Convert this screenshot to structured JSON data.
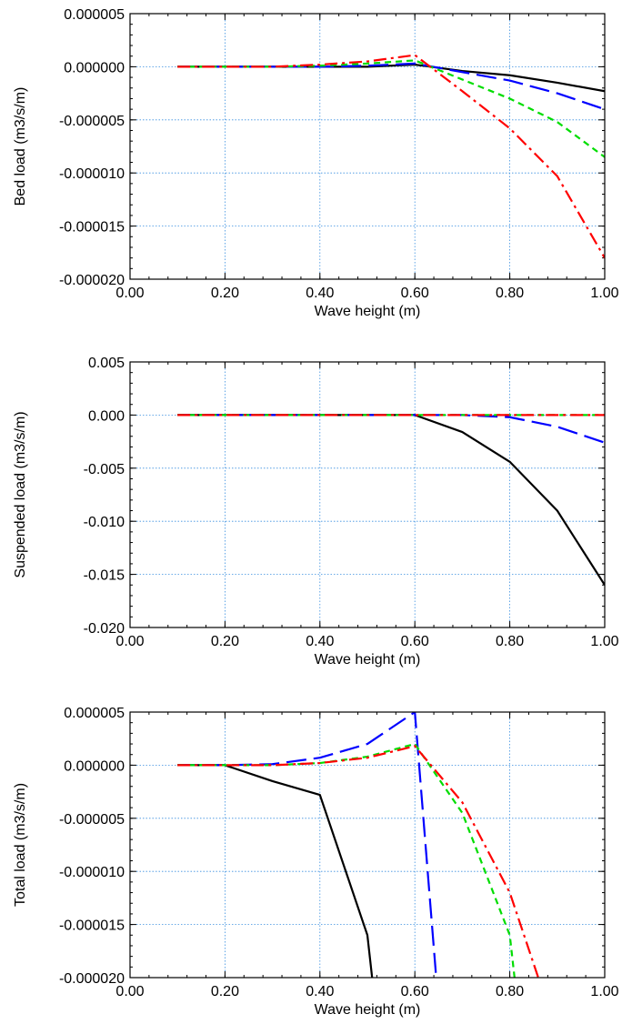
{
  "chart_data": [
    {
      "type": "line",
      "xlabel": "Wave height (m)",
      "ylabel": "Bed load (m3/s/m)",
      "xlim": [
        0.0,
        1.0
      ],
      "ylim": [
        -2e-05,
        5e-06
      ],
      "x_ticks": [
        0.0,
        0.2,
        0.4,
        0.6,
        0.8,
        1.0
      ],
      "x_tick_labels": [
        "0.00",
        "0.20",
        "0.40",
        "0.60",
        "0.80",
        "1.00"
      ],
      "y_ticks": [
        5e-06,
        0.0,
        -5e-06,
        -1e-05,
        -1.5e-05,
        -2e-05
      ],
      "y_tick_labels": [
        "0.000005",
        "0.000000",
        "-0.000005",
        "-0.000010",
        "-0.000015",
        "-0.000020"
      ],
      "grid": true,
      "x": [
        0.1,
        0.2,
        0.3,
        0.4,
        0.5,
        0.6,
        0.7,
        0.8,
        0.9,
        1.0
      ],
      "series": [
        {
          "color": "#000000",
          "dash": "solid",
          "values": [
            0.0,
            0.0,
            0.0,
            0.0,
            0.0,
            2e-07,
            -4e-07,
            -8e-07,
            -1.5e-06,
            -2.3e-06
          ]
        },
        {
          "color": "#0000ff",
          "dash": "longdash",
          "values": [
            0.0,
            0.0,
            0.0,
            0.0,
            1e-07,
            3e-07,
            -5e-07,
            -1.3e-06,
            -2.5e-06,
            -4e-06
          ]
        },
        {
          "color": "#00dd00",
          "dash": "shortdash",
          "values": [
            0.0,
            0.0,
            0.0,
            1e-07,
            3e-07,
            6e-07,
            -1.2e-06,
            -3e-06,
            -5.2e-06,
            -8.5e-06
          ]
        },
        {
          "color": "#ff0000",
          "dash": "dashdot",
          "values": [
            0.0,
            0.0,
            0.0,
            2e-07,
            5e-07,
            1.1e-06,
            -2.3e-06,
            -5.8e-06,
            -1.03e-05,
            -1.8e-05
          ]
        }
      ]
    },
    {
      "type": "line",
      "xlabel": "Wave height (m)",
      "ylabel": "Suspended load (m3/s/m)",
      "xlim": [
        0.0,
        1.0
      ],
      "ylim": [
        -0.02,
        0.005
      ],
      "x_ticks": [
        0.0,
        0.2,
        0.4,
        0.6,
        0.8,
        1.0
      ],
      "x_tick_labels": [
        "0.00",
        "0.20",
        "0.40",
        "0.60",
        "0.80",
        "1.00"
      ],
      "y_ticks": [
        0.005,
        0.0,
        -0.005,
        -0.01,
        -0.015,
        -0.02
      ],
      "y_tick_labels": [
        "0.005",
        "0.000",
        "-0.005",
        "-0.010",
        "-0.015",
        "-0.020"
      ],
      "grid": true,
      "x": [
        0.1,
        0.2,
        0.3,
        0.4,
        0.5,
        0.6,
        0.7,
        0.8,
        0.9,
        1.0
      ],
      "series": [
        {
          "color": "#000000",
          "dash": "solid",
          "values": [
            0.0,
            0.0,
            0.0,
            0.0,
            0.0,
            0.0,
            -0.0016,
            -0.0044,
            -0.009,
            -0.016
          ]
        },
        {
          "color": "#0000ff",
          "dash": "longdash",
          "values": [
            0.0,
            0.0,
            0.0,
            0.0,
            0.0,
            0.0,
            0.0,
            -0.0002,
            -0.0011,
            -0.0026
          ]
        },
        {
          "color": "#00dd00",
          "dash": "shortdash",
          "values": [
            0.0,
            0.0,
            0.0,
            0.0,
            0.0,
            0.0,
            0.0,
            0.0,
            0.0,
            0.0
          ]
        },
        {
          "color": "#ff0000",
          "dash": "dashdot",
          "values": [
            0.0,
            0.0,
            0.0,
            0.0,
            0.0,
            0.0,
            0.0,
            0.0,
            0.0,
            0.0
          ]
        }
      ]
    },
    {
      "type": "line",
      "xlabel": "Wave height (m)",
      "ylabel": "Total load (m3/s/m)",
      "xlim": [
        0.0,
        1.0
      ],
      "ylim": [
        -2e-05,
        5e-06
      ],
      "x_ticks": [
        0.0,
        0.2,
        0.4,
        0.6,
        0.8,
        1.0
      ],
      "x_tick_labels": [
        "0.00",
        "0.20",
        "0.40",
        "0.60",
        "0.80",
        "1.00"
      ],
      "y_ticks": [
        5e-06,
        0.0,
        -5e-06,
        -1e-05,
        -1.5e-05,
        -2e-05
      ],
      "y_tick_labels": [
        "0.000005",
        "0.000000",
        "-0.000005",
        "-0.000010",
        "-0.000015",
        "-0.000020"
      ],
      "grid": true,
      "series": [
        {
          "color": "#000000",
          "dash": "solid",
          "x": [
            0.1,
            0.2,
            0.3,
            0.4,
            0.5,
            0.51
          ],
          "values": [
            0.0,
            0.0,
            -1.5e-06,
            -2.8e-06,
            -1.6e-05,
            -2e-05
          ]
        },
        {
          "color": "#0000ff",
          "dash": "longdash",
          "x": [
            0.1,
            0.2,
            0.3,
            0.4,
            0.5,
            0.6,
            0.645
          ],
          "values": [
            0.0,
            0.0,
            1e-07,
            7e-07,
            2e-06,
            5e-06,
            -2e-05
          ]
        },
        {
          "color": "#00dd00",
          "dash": "shortdash",
          "x": [
            0.1,
            0.2,
            0.3,
            0.4,
            0.5,
            0.6,
            0.7,
            0.8,
            0.81
          ],
          "values": [
            0.0,
            0.0,
            0.0,
            2e-07,
            8e-07,
            2e-06,
            -4.5e-06,
            -1.6e-05,
            -2e-05
          ]
        },
        {
          "color": "#ff0000",
          "dash": "dashdot",
          "x": [
            0.1,
            0.2,
            0.3,
            0.4,
            0.5,
            0.6,
            0.7,
            0.8,
            0.86
          ],
          "values": [
            0.0,
            0.0,
            0.0,
            2e-07,
            7e-07,
            1.8e-06,
            -3.5e-06,
            -1.2e-05,
            -2e-05
          ]
        }
      ]
    }
  ]
}
